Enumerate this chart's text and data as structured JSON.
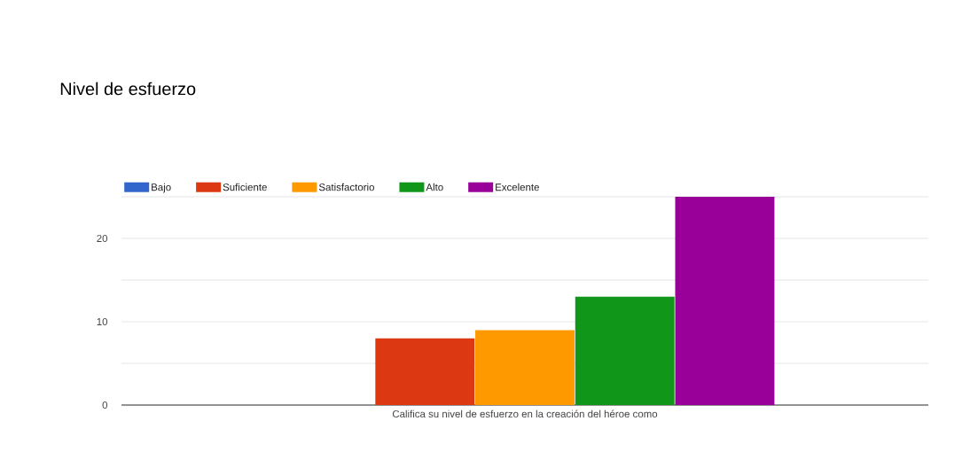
{
  "chart_data": {
    "type": "bar",
    "title": "Nivel de esfuerzo",
    "categories": [
      "Califica su nivel de esfuerzo en la creación del héroe como"
    ],
    "series": [
      {
        "name": "Bajo",
        "color": "#3366cc",
        "values": [
          0
        ]
      },
      {
        "name": "Suficiente",
        "color": "#dc3912",
        "values": [
          8
        ]
      },
      {
        "name": "Satisfactorio",
        "color": "#ff9900",
        "values": [
          9
        ]
      },
      {
        "name": "Alto",
        "color": "#109618",
        "values": [
          13
        ]
      },
      {
        "name": "Excelente",
        "color": "#990099",
        "values": [
          25
        ]
      }
    ],
    "ylim": [
      0,
      25
    ],
    "yticks": [
      0,
      {
        "value": 5,
        "label": null
      },
      10,
      {
        "value": 15,
        "label": null
      },
      20,
      {
        "value": 25,
        "label": null
      }
    ],
    "grid": "y",
    "legend": "top"
  }
}
